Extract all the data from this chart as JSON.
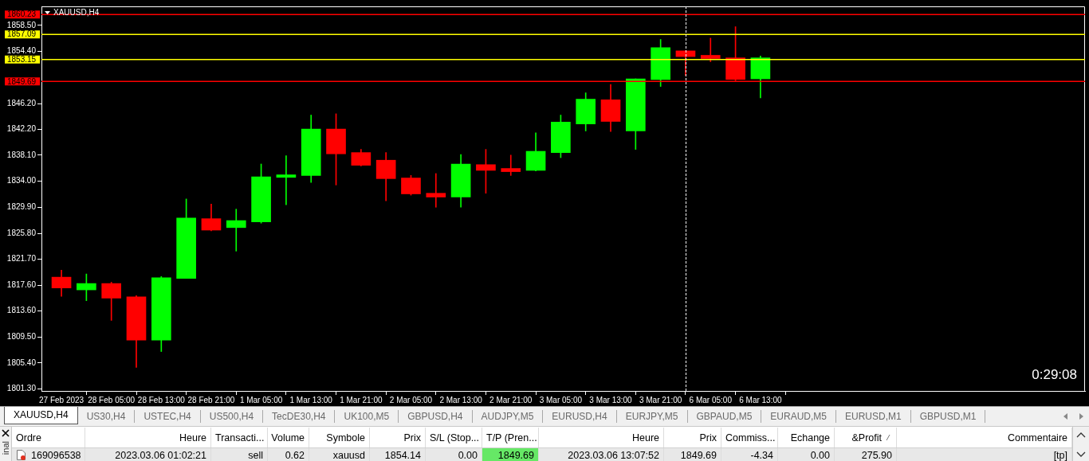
{
  "chart_data": [
    {
      "type": "candlestick",
      "title": "XAUUSD,H4",
      "categories": [
        "27 Feb 2023",
        null,
        "28 Feb 05:00",
        null,
        "28 Feb 13:00",
        null,
        "28 Feb 21:00",
        null,
        "1 Mar 05:00",
        null,
        "1 Mar 13:00",
        null,
        "1 Mar 21:00",
        null,
        "2 Mar 05:00",
        null,
        "2 Mar 13:00",
        null,
        "2 Mar 21:00",
        null,
        "3 Mar 05:00",
        null,
        "3 Mar 13:00",
        null,
        "3 Mar 21:00",
        null,
        "6 Mar 05:00",
        null,
        "6 Mar 13:00"
      ],
      "ohlc": [
        [
          1818.9,
          1820.0,
          1815.9,
          1817.2
        ],
        [
          1816.9,
          1819.4,
          1815.2,
          1817.9
        ],
        [
          1817.9,
          1818.1,
          1812.1,
          1815.6
        ],
        [
          1815.8,
          1816.0,
          1804.7,
          1809.0
        ],
        [
          1809.0,
          1819.0,
          1807.2,
          1818.8
        ],
        [
          1818.7,
          1831.2,
          1818.7,
          1828.2
        ],
        [
          1828.1,
          1830.4,
          1826.2,
          1826.3
        ],
        [
          1826.7,
          1829.6,
          1823.0,
          1827.8
        ],
        [
          1827.6,
          1836.7,
          1827.4,
          1834.7
        ],
        [
          1834.6,
          1838.0,
          1830.3,
          1835.0
        ],
        [
          1834.9,
          1844.4,
          1833.8,
          1842.2
        ],
        [
          1842.2,
          1844.6,
          1833.4,
          1838.3
        ],
        [
          1838.5,
          1839.0,
          1836.4,
          1836.5
        ],
        [
          1837.3,
          1838.5,
          1830.9,
          1834.4
        ],
        [
          1834.5,
          1834.9,
          1831.8,
          1832.0
        ],
        [
          1832.1,
          1835.2,
          1829.9,
          1831.5
        ],
        [
          1831.5,
          1838.2,
          1829.9,
          1836.7
        ],
        [
          1836.6,
          1839.0,
          1832.1,
          1835.7
        ],
        [
          1836.0,
          1838.1,
          1834.9,
          1835.5
        ],
        [
          1835.7,
          1841.6,
          1835.6,
          1838.7
        ],
        [
          1838.5,
          1844.4,
          1837.7,
          1843.3
        ],
        [
          1843.0,
          1847.9,
          1841.9,
          1846.9
        ],
        [
          1846.8,
          1849.2,
          1841.8,
          1843.4
        ],
        [
          1841.9,
          1850.1,
          1839.0,
          1850.1
        ],
        [
          1850.0,
          1856.3,
          1848.9,
          1855.0
        ],
        [
          1854.5,
          1854.5,
          1850.6,
          1853.6
        ],
        [
          1853.8,
          1856.5,
          1852.8,
          1853.3
        ],
        [
          1853.4,
          1858.3,
          1849.8,
          1850.0
        ],
        [
          1850.1,
          1853.7,
          1847.1,
          1853.4
        ]
      ],
      "colors": [
        "#ff0000",
        "#00ff00",
        "#ff0000",
        "#ff0000",
        "#00ff00",
        "#00ff00",
        "#ff0000",
        "#00ff00",
        "#00ff00",
        "#00ff00",
        "#00ff00",
        "#ff0000",
        "#ff0000",
        "#ff0000",
        "#ff0000",
        "#ff0000",
        "#00ff00",
        "#ff0000",
        "#ff0000",
        "#00ff00",
        "#00ff00",
        "#00ff00",
        "#ff0000",
        "#00ff00",
        "#00ff00",
        "#ff0000",
        "#ff0000",
        "#ff0000",
        "#00ff00"
      ],
      "ylim": [
        1801.0,
        1861.5
      ],
      "yticks": [
        {
          "value": 1801.3,
          "label": "1801.30"
        },
        {
          "value": 1805.4,
          "label": "1805.40"
        },
        {
          "value": 1809.5,
          "label": "1809.50"
        },
        {
          "value": 1813.6,
          "label": "1813.60"
        },
        {
          "value": 1817.6,
          "label": "1817.60"
        },
        {
          "value": 1821.7,
          "label": "1821.70"
        },
        {
          "value": 1825.8,
          "label": "1825.80"
        },
        {
          "value": 1829.9,
          "label": "1829.90"
        },
        {
          "value": 1834.0,
          "label": "1834.00"
        },
        {
          "value": 1838.1,
          "label": "1838.10"
        },
        {
          "value": 1842.2,
          "label": "1842.20"
        },
        {
          "value": 1846.2,
          "label": "1846.20"
        },
        {
          "value": 1854.4,
          "label": "1854.40"
        },
        {
          "value": 1858.5,
          "label": "1858.50"
        }
      ],
      "ref_lines": [
        {
          "axis": "y",
          "value": 1860.23,
          "label": "1860.23",
          "color": "#ff0000"
        },
        {
          "axis": "y",
          "value": 1857.09,
          "label": "1857.09",
          "color": "#ffff00"
        },
        {
          "axis": "y",
          "value": 1853.15,
          "label": "1853.15",
          "color": "#ffff00"
        },
        {
          "axis": "y",
          "value": 1849.69,
          "label": "1849.69",
          "color": "#ff0000"
        }
      ],
      "annotations": [
        "0:29:08"
      ]
    },
    {
      "type": "other",
      "categories": [
        "XAUUSD,H4",
        "US30,H4",
        "USTEC,H4",
        "US500,H4",
        "TecDE30,H4",
        "UK100,M5",
        "GBPUSD,H4",
        "AUDJPY,M5",
        "EURUSD,H4",
        "EURJPY,M5",
        "GBPAUD,M5",
        "EURAUD,M5",
        "EURUSD,M1",
        "GBPUSD,M1"
      ]
    },
    {
      "type": "other",
      "title": "inal",
      "categories": [
        "Ordre",
        "Heure",
        "Transacti...",
        "Volume",
        "Symbole",
        "Prix",
        "S/L (Stop...",
        "T/P (Pren...",
        "Heure",
        "Prix",
        "Commiss...",
        "Echange",
        "&Profit",
        "Commentaire"
      ],
      "annotations": [
        "169096538",
        "2023.03.06 01:02:21",
        "sell",
        "0.62",
        "xauusd",
        "1854.14",
        "0.00",
        "1849.69",
        "2023.03.06 13:07:52",
        "1849.69",
        "-4.34",
        "0.00",
        "275.90",
        "[tp]"
      ],
      "colors": [
        null,
        null,
        null,
        null,
        null,
        null,
        null,
        "#66e866",
        null,
        null,
        null,
        null,
        null,
        null
      ]
    }
  ]
}
